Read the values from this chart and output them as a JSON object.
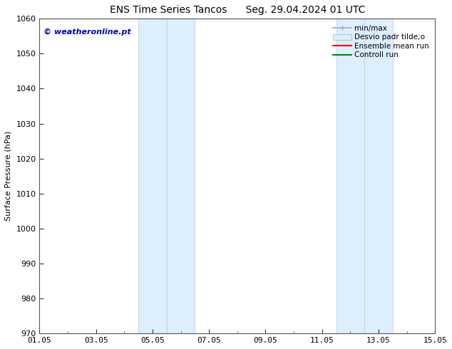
{
  "title": "ENS Time Series Tancos      Seg. 29.04.2024 01 UTC",
  "ylabel": "Surface Pressure (hPa)",
  "ylim": [
    970,
    1060
  ],
  "yticks": [
    970,
    980,
    990,
    1000,
    1010,
    1020,
    1030,
    1040,
    1050,
    1060
  ],
  "xlim": [
    0,
    14
  ],
  "xtick_labels": [
    "01.05",
    "03.05",
    "05.05",
    "07.05",
    "09.05",
    "11.05",
    "13.05",
    "15.05"
  ],
  "xtick_positions": [
    0,
    2,
    4,
    6,
    8,
    10,
    12,
    14
  ],
  "shaded_bands": [
    {
      "x_start": 3.5,
      "x_end": 4.5
    },
    {
      "x_start": 4.5,
      "x_end": 5.5
    },
    {
      "x_start": 10.5,
      "x_end": 11.5
    },
    {
      "x_start": 11.5,
      "x_end": 12.5
    }
  ],
  "band_color": "#ddeeff",
  "band_border_color": "#b8d4f0",
  "background_color": "#ffffff",
  "watermark_text": "© weatheronline.pt",
  "watermark_color": "#0000bb",
  "legend_entries": [
    {
      "label": "min/max",
      "color": "#aaaaaa",
      "lw": 1.2,
      "type": "line_tick"
    },
    {
      "label": "Desvio padr tilde;o",
      "color": "#ddeeff",
      "border": "#aaaaaa",
      "type": "patch"
    },
    {
      "label": "Ensemble mean run",
      "color": "#ff0000",
      "lw": 1.5,
      "type": "line"
    },
    {
      "label": "Controll run",
      "color": "#008800",
      "lw": 1.5,
      "type": "line"
    }
  ],
  "spine_color": "#555555",
  "tick_color": "#333333",
  "title_fontsize": 10,
  "label_fontsize": 8,
  "tick_fontsize": 8,
  "legend_fontsize": 7.5
}
